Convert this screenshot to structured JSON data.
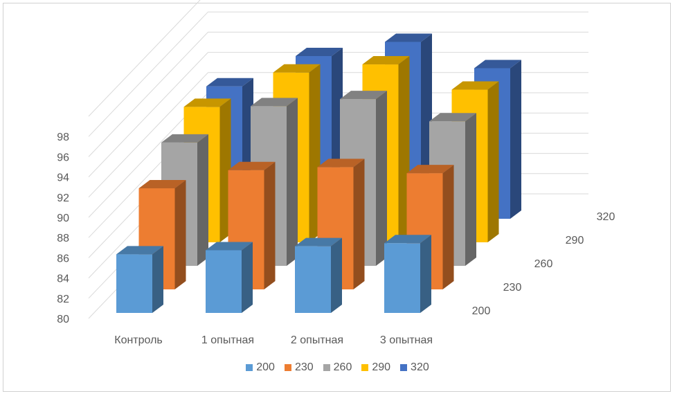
{
  "chart_data": {
    "type": "bar",
    "subtype": "3d-clustered-depth",
    "title": "",
    "categories": [
      "Контроль",
      "1 опытная",
      "2 опытная",
      "3 опытная"
    ],
    "series": [
      {
        "name": "200",
        "values": [
          85.8,
          86.2,
          86.6,
          86.9
        ]
      },
      {
        "name": "230",
        "values": [
          90.0,
          91.8,
          92.1,
          91.5
        ]
      },
      {
        "name": "260",
        "values": [
          92.2,
          95.8,
          96.5,
          94.3
        ]
      },
      {
        "name": "290",
        "values": [
          93.4,
          96.8,
          97.6,
          95.1
        ]
      },
      {
        "name": "320",
        "values": [
          93.1,
          96.1,
          97.5,
          94.9
        ]
      }
    ],
    "depth_labels": [
      "200",
      "230",
      "260",
      "290",
      "320"
    ],
    "yticks": [
      "80",
      "82",
      "84",
      "86",
      "88",
      "90",
      "92",
      "94",
      "96",
      "98"
    ],
    "ylim": [
      80,
      98
    ],
    "grid": true,
    "legend_position": "bottom",
    "colors": {
      "200": "#5b9bd5",
      "230": "#ed7d31",
      "260": "#a5a5a5",
      "290": "#ffc000",
      "320": "#4472c4"
    }
  }
}
